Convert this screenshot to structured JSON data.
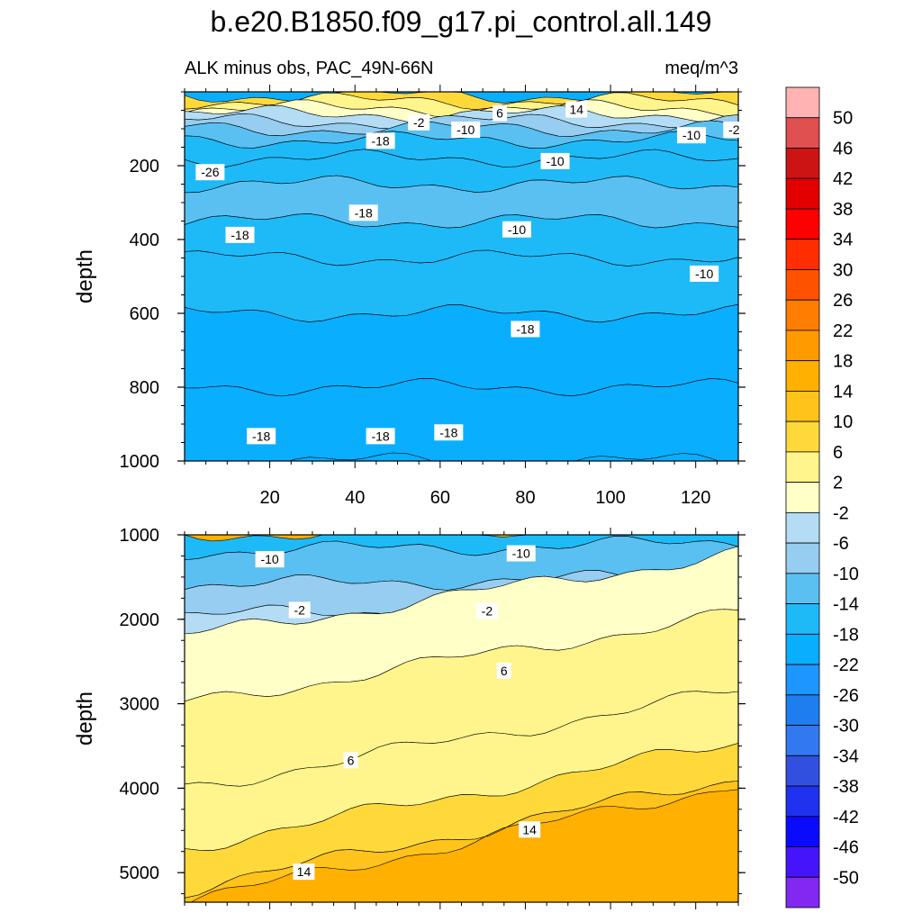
{
  "figure": {
    "title": "b.e20.B1850.f09_g17.pi_control.all.149",
    "subtitle_left": "ALK minus obs, PAC_49N-66N",
    "subtitle_right": "meq/m^3"
  },
  "chart_data": [
    {
      "type": "contour",
      "panel": "top",
      "xlabel": "",
      "ylabel": "depth",
      "xlim": [
        0,
        130
      ],
      "ylim": [
        1000,
        0
      ],
      "y_ticks": [
        200,
        400,
        600,
        800,
        1000
      ],
      "x_ticks": [
        20,
        40,
        60,
        80,
        100,
        120
      ],
      "x_tick_labels": [
        "20",
        "40",
        "60",
        "80",
        "100",
        "120"
      ],
      "depth_bands": [
        {
          "depth": 10,
          "value": 10
        },
        {
          "depth": 25,
          "value": 6
        },
        {
          "depth": 45,
          "value": 2
        },
        {
          "depth": 60,
          "value": -2
        },
        {
          "depth": 80,
          "value": -6
        },
        {
          "depth": 100,
          "value": -10
        },
        {
          "depth": 130,
          "value": -14
        },
        {
          "depth": 180,
          "value": -14
        },
        {
          "depth": 250,
          "value": -10
        },
        {
          "depth": 350,
          "value": -14
        },
        {
          "depth": 450,
          "value": -14
        },
        {
          "depth": 600,
          "value": -18
        },
        {
          "depth": 800,
          "value": -18
        },
        {
          "depth": 1000,
          "value": -18
        }
      ],
      "contour_labels": [
        {
          "text": "14",
          "x": 92,
          "y": 50
        },
        {
          "text": "6",
          "x": 74,
          "y": 60
        },
        {
          "text": "-2",
          "x": 55,
          "y": 85
        },
        {
          "text": "-10",
          "x": 66,
          "y": 105
        },
        {
          "text": "-18",
          "x": 46,
          "y": 135
        },
        {
          "text": "-10",
          "x": 119,
          "y": 120
        },
        {
          "text": "-2",
          "x": 129,
          "y": 105
        },
        {
          "text": "-10",
          "x": 87,
          "y": 190
        },
        {
          "text": "-26",
          "x": 6,
          "y": 220
        },
        {
          "text": "-18",
          "x": 13,
          "y": 390
        },
        {
          "text": "-10",
          "x": 78,
          "y": 375
        },
        {
          "text": "-10",
          "x": 122,
          "y": 495
        },
        {
          "text": "-18",
          "x": 42,
          "y": 330
        },
        {
          "text": "-18",
          "x": 80,
          "y": 645
        },
        {
          "text": "-18",
          "x": 18,
          "y": 935
        },
        {
          "text": "-18",
          "x": 46,
          "y": 935
        },
        {
          "text": "-18",
          "x": 62,
          "y": 925
        }
      ]
    },
    {
      "type": "contour",
      "panel": "bottom",
      "xlabel": "",
      "ylabel": "depth",
      "xlim": [
        0,
        130
      ],
      "ylim": [
        5350,
        1000
      ],
      "y_ticks": [
        1000,
        2000,
        3000,
        4000,
        5000
      ],
      "depth_bands": [
        {
          "depth": 1000,
          "value": -14
        },
        {
          "depth": 1200,
          "value": -10
        },
        {
          "depth": 1600,
          "value": -6
        },
        {
          "depth": 1950,
          "value": -2
        },
        {
          "depth": 2200,
          "value": 2
        },
        {
          "depth": 3000,
          "value": 6
        },
        {
          "depth": 4000,
          "value": 6
        },
        {
          "depth": 4700,
          "value": 10
        },
        {
          "depth": 5200,
          "value": 14
        },
        {
          "depth": 5350,
          "value": 18
        }
      ],
      "contour_labels": [
        {
          "text": "-10",
          "x": 20,
          "y": 1300
        },
        {
          "text": "-10",
          "x": 79,
          "y": 1230
        },
        {
          "text": "-2",
          "x": 27,
          "y": 1900
        },
        {
          "text": "-2",
          "x": 71,
          "y": 1910
        },
        {
          "text": "6",
          "x": 75,
          "y": 2620
        },
        {
          "text": "6",
          "x": 39,
          "y": 3680
        },
        {
          "text": "14",
          "x": 81,
          "y": 4500
        },
        {
          "text": "14",
          "x": 28,
          "y": 5000
        }
      ]
    }
  ],
  "colorbar": {
    "colors": [
      "#ffb3b3",
      "#e05050",
      "#cc1414",
      "#e20000",
      "#ff0000",
      "#ff2d00",
      "#ff5200",
      "#ff7d00",
      "#ff9a00",
      "#ffb000",
      "#ffc31c",
      "#ffd93a",
      "#fff58c",
      "#ffffc8",
      "#b4dcf5",
      "#96cdf0",
      "#5ac0f2",
      "#1ebaf8",
      "#0aaeff",
      "#1e96ff",
      "#1e7ef0",
      "#3278f0",
      "#3250e0",
      "#1e32f0",
      "#0a0aff",
      "#4614fa",
      "#8228f0"
    ],
    "labels": [
      "50",
      "46",
      "42",
      "38",
      "34",
      "30",
      "26",
      "22",
      "18",
      "14",
      "10",
      "6",
      "2",
      "-2",
      "-6",
      "-10",
      "-14",
      "-18",
      "-22",
      "-26",
      "-30",
      "-34",
      "-38",
      "-42",
      "-46",
      "-50"
    ]
  }
}
